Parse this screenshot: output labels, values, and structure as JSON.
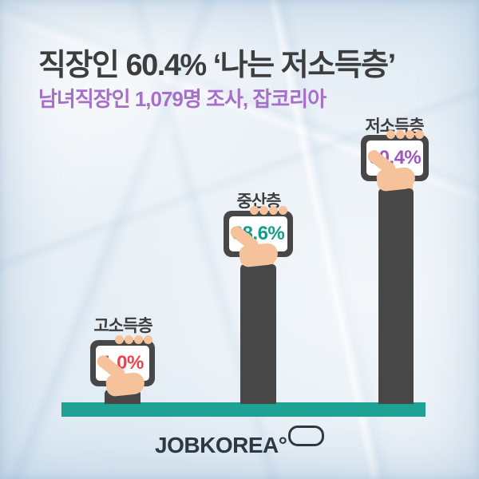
{
  "header": {
    "title": "직장인 60.4% ‘나는 저소득층’",
    "subtitle": "남녀직장인 1,079명 조사, 잡코리아"
  },
  "chart_data": {
    "type": "bar",
    "title": "직장인 60.4% ‘나는 저소득층’",
    "subtitle": "남녀직장인 1,079명 조사, 잡코리아",
    "categories": [
      "고소득층",
      "중산층",
      "저소득층"
    ],
    "values": [
      1.0,
      38.6,
      60.4
    ],
    "display_values": [
      "1.0%",
      "38.6%",
      "60.4%"
    ],
    "unit": "%",
    "orientation": "vertical",
    "ylim": [
      0,
      65
    ],
    "grid": false,
    "legend": false,
    "value_colors": [
      "#ee434e",
      "#119c8a",
      "#9c57bd"
    ],
    "bar_style": "arm-holding-tablet pictogram",
    "baseline_color": "#1fa293"
  },
  "footer": {
    "logo_text": "JOBKOREA",
    "logo_degree": "°"
  },
  "colors": {
    "paper_background": "#e9f0f7",
    "title_text": "#3d3d3d",
    "subtitle_purple": "#a76fc9",
    "baseline_teal": "#1fa293",
    "sleeve_dark_gray": "#474747",
    "hand_peach": "#f6c29c",
    "screen_white": "#ffffff",
    "value_red": "#ee434e",
    "value_teal": "#119c8a",
    "value_purple": "#9c57bd",
    "logo_dark": "#2d3941"
  },
  "icons": {
    "fingers": "finger-tips-icon",
    "thumb": "thumb-icon",
    "tablet": "tablet-device-icon",
    "logo_pill": "jobkorea-pill-icon"
  }
}
